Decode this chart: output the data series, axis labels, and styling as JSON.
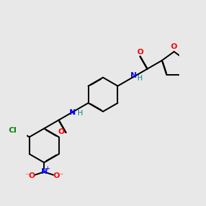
{
  "bg_color": "#e8e8e8",
  "bond_color": "#000000",
  "bond_width": 1.5,
  "dbo": 0.018,
  "atom_colors": {
    "O": "#ff0000",
    "N": "#0000ff",
    "Cl": "#008000",
    "H": "#008080"
  },
  "fs": 7.5,
  "fig_size": [
    3.0,
    3.0
  ],
  "dpi": 100
}
